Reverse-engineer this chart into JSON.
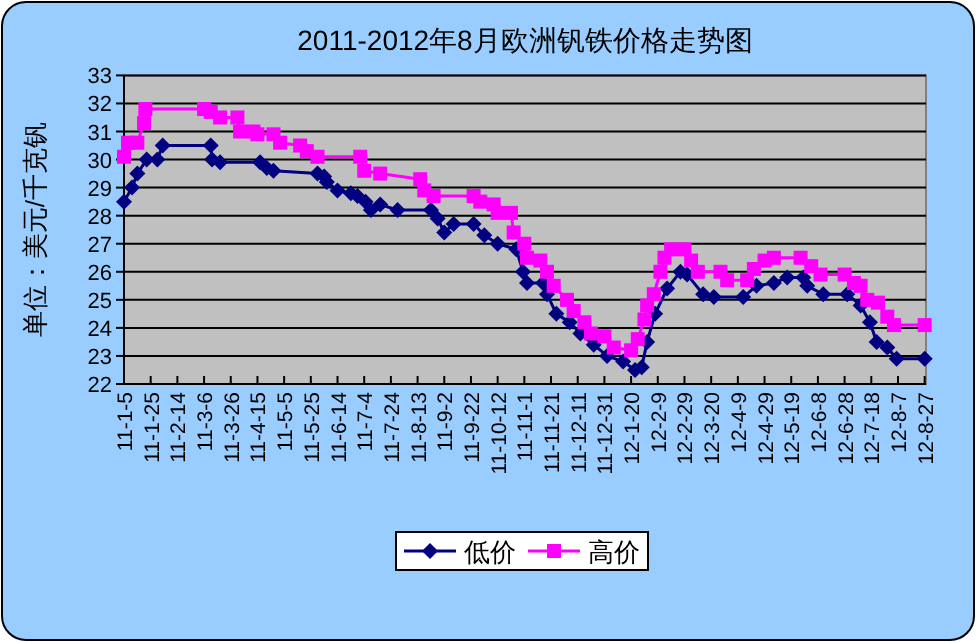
{
  "chart_data": {
    "type": "line",
    "title": "2011-2012年8月欧洲钒铁价格走势图",
    "ylabel": "单位：美元/千克钒",
    "xlim": [
      "2011-01-05",
      "2012-08-28"
    ],
    "xticks": [
      {
        "value": "2011-01-05",
        "label": "11-1-5"
      },
      {
        "value": "2011-01-25",
        "label": "11-1-25"
      },
      {
        "value": "2011-02-14",
        "label": "11-2-14"
      },
      {
        "value": "2011-03-06",
        "label": "11-3-6"
      },
      {
        "value": "2011-03-26",
        "label": "11-3-26"
      },
      {
        "value": "2011-04-15",
        "label": "11-4-15"
      },
      {
        "value": "2011-05-05",
        "label": "11-5-5"
      },
      {
        "value": "2011-05-25",
        "label": "11-5-25"
      },
      {
        "value": "2011-06-14",
        "label": "11-6-14"
      },
      {
        "value": "2011-07-04",
        "label": "11-7-4"
      },
      {
        "value": "2011-07-24",
        "label": "11-7-24"
      },
      {
        "value": "2011-08-13",
        "label": "11-8-13"
      },
      {
        "value": "2011-09-02",
        "label": "11-9-2"
      },
      {
        "value": "2011-09-22",
        "label": "11-9-22"
      },
      {
        "value": "2011-10-12",
        "label": "11-10-12"
      },
      {
        "value": "2011-11-01",
        "label": "11-11-1"
      },
      {
        "value": "2011-11-21",
        "label": "11-11-21"
      },
      {
        "value": "2011-12-11",
        "label": "11-12-11"
      },
      {
        "value": "2011-12-31",
        "label": "11-12-31"
      },
      {
        "value": "2012-01-20",
        "label": "12-1-20"
      },
      {
        "value": "2012-02-09",
        "label": "12-2-9"
      },
      {
        "value": "2012-02-29",
        "label": "12-2-29"
      },
      {
        "value": "2012-03-20",
        "label": "12-3-20"
      },
      {
        "value": "2012-04-09",
        "label": "12-4-9"
      },
      {
        "value": "2012-04-29",
        "label": "12-4-29"
      },
      {
        "value": "2012-05-19",
        "label": "12-5-19"
      },
      {
        "value": "2012-06-08",
        "label": "12-6-8"
      },
      {
        "value": "2012-06-28",
        "label": "12-6-28"
      },
      {
        "value": "2012-07-18",
        "label": "12-7-18"
      },
      {
        "value": "2012-08-07",
        "label": "12-8-7"
      },
      {
        "value": "2012-08-27",
        "label": "12-8-27"
      }
    ],
    "ylim": [
      22,
      33
    ],
    "yticks": [
      22,
      23,
      24,
      25,
      26,
      27,
      28,
      29,
      30,
      31,
      32,
      33
    ],
    "grid": "y",
    "legend": "bottom",
    "line_style": "solid",
    "series": [
      {
        "name": "低价",
        "color": "#000080",
        "marker": "diamond",
        "x": [
          "2011-01-05",
          "2011-01-11",
          "2011-01-15",
          "2011-01-22",
          "2011-01-30",
          "2011-02-03",
          "2011-03-11",
          "2011-03-12",
          "2011-03-18",
          "2011-04-17",
          "2011-04-22",
          "2011-04-27",
          "2011-05-30",
          "2011-06-04",
          "2011-06-06",
          "2011-06-14",
          "2011-06-24",
          "2011-06-29",
          "2011-07-05",
          "2011-07-09",
          "2011-07-16",
          "2011-07-29",
          "2011-08-23",
          "2011-08-28",
          "2011-09-02",
          "2011-09-09",
          "2011-09-24",
          "2011-10-02",
          "2011-10-12",
          "2011-10-26",
          "2011-10-31",
          "2011-11-03",
          "2011-11-15",
          "2011-11-18",
          "2011-11-25",
          "2011-12-05",
          "2011-12-13",
          "2011-12-23",
          "2012-01-02",
          "2012-01-14",
          "2012-01-23",
          "2012-01-28",
          "2012-02-01",
          "2012-02-07",
          "2012-02-16",
          "2012-02-26",
          "2012-03-02",
          "2012-03-14",
          "2012-03-22",
          "2012-04-13",
          "2012-04-23",
          "2012-05-06",
          "2012-05-16",
          "2012-05-28",
          "2012-05-31",
          "2012-06-12",
          "2012-06-30",
          "2012-07-10",
          "2012-07-17",
          "2012-07-22",
          "2012-07-30",
          "2012-08-06",
          "2012-08-27"
        ],
        "values": [
          28.5,
          29.0,
          29.5,
          30.0,
          30.0,
          30.5,
          30.5,
          30.0,
          29.9,
          29.9,
          29.7,
          29.6,
          29.5,
          29.4,
          29.2,
          28.9,
          28.8,
          28.7,
          28.5,
          28.2,
          28.4,
          28.2,
          28.2,
          27.9,
          27.4,
          27.7,
          27.7,
          27.3,
          27.0,
          26.8,
          26.0,
          25.6,
          25.6,
          25.2,
          24.5,
          24.2,
          23.8,
          23.4,
          23.0,
          22.8,
          22.5,
          22.6,
          23.5,
          24.5,
          25.4,
          26.0,
          25.9,
          25.2,
          25.1,
          25.1,
          25.5,
          25.6,
          25.8,
          25.8,
          25.5,
          25.2,
          25.2,
          24.8,
          24.2,
          23.5,
          23.3,
          22.9,
          22.9
        ]
      },
      {
        "name": "高价",
        "color": "#ff00ff",
        "marker": "square",
        "x": [
          "2011-01-05",
          "2011-01-08",
          "2011-01-15",
          "2011-01-20",
          "2011-01-21",
          "2011-03-06",
          "2011-03-11",
          "2011-03-18",
          "2011-03-31",
          "2011-04-02",
          "2011-04-12",
          "2011-04-15",
          "2011-04-27",
          "2011-05-02",
          "2011-05-17",
          "2011-05-22",
          "2011-05-30",
          "2011-07-01",
          "2011-07-04",
          "2011-07-16",
          "2011-08-15",
          "2011-08-18",
          "2011-08-25",
          "2011-09-24",
          "2011-09-29",
          "2011-10-09",
          "2011-10-12",
          "2011-10-22",
          "2011-10-24",
          "2011-11-01",
          "2011-11-03",
          "2011-11-13",
          "2011-11-18",
          "2011-11-23",
          "2011-12-03",
          "2011-12-08",
          "2011-12-16",
          "2011-12-21",
          "2011-12-31",
          "2012-01-07",
          "2012-01-20",
          "2012-01-25",
          "2012-01-30",
          "2012-02-01",
          "2012-02-06",
          "2012-02-11",
          "2012-02-14",
          "2012-02-19",
          "2012-02-29",
          "2012-03-05",
          "2012-03-10",
          "2012-03-27",
          "2012-04-01",
          "2012-04-16",
          "2012-04-21",
          "2012-04-29",
          "2012-05-06",
          "2012-05-26",
          "2012-06-03",
          "2012-06-10",
          "2012-06-28",
          "2012-07-05",
          "2012-07-10",
          "2012-07-15",
          "2012-07-23",
          "2012-07-30",
          "2012-08-04",
          "2012-08-27"
        ],
        "values": [
          30.1,
          30.6,
          30.6,
          31.3,
          31.8,
          31.8,
          31.7,
          31.5,
          31.5,
          31.0,
          31.0,
          30.9,
          30.9,
          30.6,
          30.5,
          30.3,
          30.1,
          30.1,
          29.6,
          29.5,
          29.3,
          28.9,
          28.7,
          28.7,
          28.5,
          28.4,
          28.1,
          28.1,
          27.4,
          27.0,
          26.5,
          26.4,
          26.0,
          25.5,
          25.0,
          24.6,
          24.2,
          23.8,
          23.7,
          23.3,
          23.2,
          23.6,
          24.3,
          24.8,
          25.2,
          26.0,
          26.5,
          26.8,
          26.8,
          26.4,
          26.0,
          26.0,
          25.7,
          25.7,
          26.1,
          26.4,
          26.5,
          26.5,
          26.2,
          25.9,
          25.9,
          25.6,
          25.5,
          25.0,
          24.9,
          24.4,
          24.1,
          24.1
        ]
      }
    ]
  }
}
